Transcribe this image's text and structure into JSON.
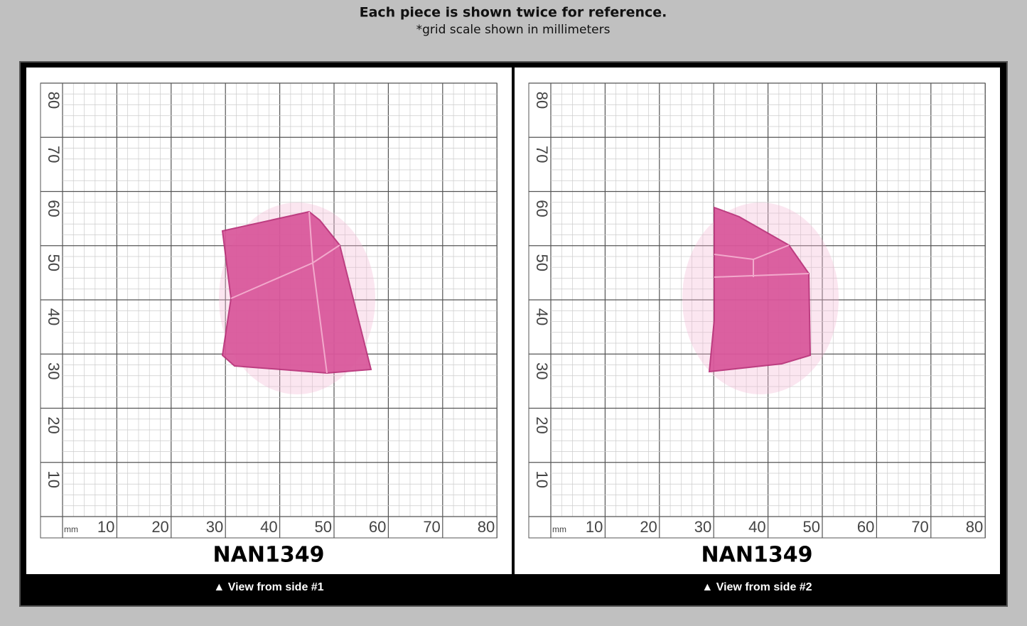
{
  "header": {
    "title": "Each piece is shown twice for reference.",
    "subtitle": "*grid scale shown in millimeters"
  },
  "panels": [
    {
      "code": "NAN1349",
      "caption": "▲ View from side #1",
      "unit": "mm",
      "x_labels": [
        10,
        20,
        30,
        40,
        50,
        60,
        70,
        80
      ],
      "y_labels": [
        10,
        20,
        30,
        40,
        50,
        60,
        70,
        80
      ]
    },
    {
      "code": "NAN1349",
      "caption": "▲ View from side #2",
      "unit": "mm",
      "x_labels": [
        10,
        20,
        30,
        40,
        50,
        60,
        70,
        80
      ],
      "y_labels": [
        10,
        20,
        30,
        40,
        50,
        60,
        70,
        80
      ]
    }
  ]
}
